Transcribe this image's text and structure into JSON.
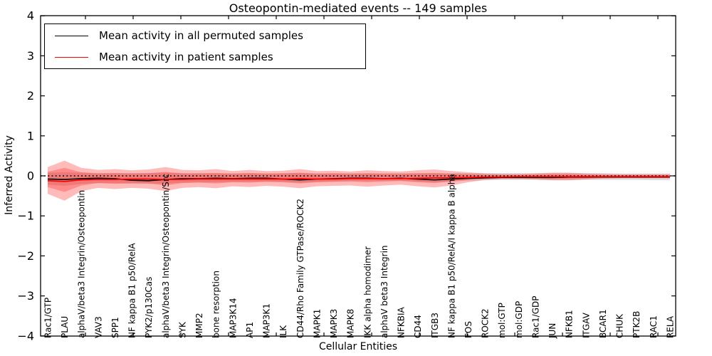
{
  "title": "Osteopontin-mediated events -- 149 samples",
  "axes": {
    "ylabel": "Inferred Activity",
    "xlabel": "Cellular Entities",
    "ytick_labels": [
      "4",
      "3",
      "2",
      "1",
      "0",
      "−1",
      "−2",
      "−3",
      "−4"
    ]
  },
  "legend": {
    "items": [
      {
        "label": "Mean activity in all permuted samples",
        "color": "#000000"
      },
      {
        "label": "Mean activity in patient samples",
        "color": "#ff0000"
      }
    ]
  },
  "chart_data": {
    "type": "line",
    "title": "Osteopontin-mediated events -- 149 samples",
    "xlabel": "Cellular Entities",
    "ylabel": "Inferred Activity",
    "ylim": [
      -4,
      4
    ],
    "grid": false,
    "legend_position": "upper left",
    "zero_line": {
      "style": "dotted",
      "color": "#000000",
      "y": 0
    },
    "categories": [
      "Rac1/GTP",
      "PLAU",
      "alphaV/beta3 Integrin/Osteopontin",
      "VAV3",
      "SPP1",
      "NF kappa B1 p50/RelA",
      "PYK2/p130Cas",
      "alphaV/beta3 Integrin/Osteopontin/Src",
      "SYK",
      "MMP2",
      "bone resorption",
      "MAP3K14",
      "AP1",
      "MAP3K1",
      "ILK",
      "CD44/Rho Family GTPase/ROCK2",
      "MAPK1",
      "MAPK3",
      "MAPK8",
      "IKK alpha homodimer",
      "alphaV beta3 Integrin",
      "NFKBIA",
      "CD44",
      "ITGB3",
      "NF kappa B1 p50/RelA/I kappa B alpha",
      "FOS",
      "ROCK2",
      "mol:GTP",
      "mol:GDP",
      "Rac1/GDP",
      "JUN",
      "NFKB1",
      "ITGAV",
      "BCAR1",
      "CHUK",
      "PTK2B",
      "RAC1",
      "RELA"
    ],
    "ytick_values": [
      4,
      3,
      2,
      1,
      0,
      -1,
      -2,
      -3,
      -4
    ],
    "series": [
      {
        "name": "Mean activity in all permuted samples",
        "color": "#000000",
        "values": [
          -0.08,
          -0.09,
          -0.07,
          -0.06,
          -0.07,
          -0.11,
          -0.12,
          -0.09,
          -0.07,
          -0.07,
          -0.06,
          -0.07,
          -0.06,
          -0.06,
          -0.08,
          -0.1,
          -0.08,
          -0.07,
          -0.06,
          -0.06,
          -0.07,
          -0.06,
          -0.08,
          -0.1,
          -0.08,
          -0.06,
          -0.05,
          -0.04,
          -0.04,
          -0.04,
          -0.04,
          -0.03,
          -0.03,
          -0.03,
          -0.03,
          -0.03,
          -0.03,
          -0.03
        ]
      },
      {
        "name": "Mean activity in patient samples",
        "color": "#ff0000",
        "values": [
          -0.12,
          -0.14,
          -0.1,
          -0.09,
          -0.09,
          -0.08,
          -0.08,
          -0.09,
          -0.09,
          -0.08,
          -0.08,
          -0.08,
          -0.08,
          -0.08,
          -0.08,
          -0.07,
          -0.08,
          -0.08,
          -0.07,
          -0.07,
          -0.07,
          -0.07,
          -0.06,
          -0.05,
          -0.05,
          -0.04,
          -0.03,
          -0.03,
          -0.02,
          -0.02,
          -0.02,
          -0.02,
          -0.02,
          -0.02,
          -0.02,
          -0.02,
          -0.02,
          -0.02
        ]
      }
    ],
    "bands": [
      {
        "name": "permuted-range",
        "color": "rgba(0,0,0,0.13)",
        "high": [
          0.08,
          0.09,
          0.08,
          0.07,
          0.07,
          0.07,
          0.07,
          0.08,
          0.07,
          0.07,
          0.07,
          0.07,
          0.07,
          0.07,
          0.07,
          0.07,
          0.07,
          0.07,
          0.07,
          0.07,
          0.07,
          0.07,
          0.07,
          0.07,
          0.07,
          0.07,
          0.07,
          0.07,
          0.07,
          0.07,
          0.07,
          0.07,
          0.07,
          0.07,
          0.06,
          0.06,
          0.06,
          0.06
        ],
        "low": [
          -0.22,
          -0.25,
          -0.2,
          -0.18,
          -0.18,
          -0.2,
          -0.2,
          -0.19,
          -0.17,
          -0.16,
          -0.16,
          -0.15,
          -0.15,
          -0.14,
          -0.15,
          -0.17,
          -0.15,
          -0.14,
          -0.13,
          -0.13,
          -0.13,
          -0.12,
          -0.14,
          -0.16,
          -0.14,
          -0.12,
          -0.11,
          -0.1,
          -0.1,
          -0.1,
          -0.11,
          -0.11,
          -0.1,
          -0.1,
          -0.1,
          -0.1,
          -0.11,
          -0.11
        ]
      },
      {
        "name": "patient-range-outer",
        "color": "rgba(255,0,0,0.27)",
        "high": [
          0.22,
          0.38,
          0.2,
          0.15,
          0.17,
          0.14,
          0.16,
          0.22,
          0.15,
          0.14,
          0.17,
          0.12,
          0.15,
          0.12,
          0.13,
          0.17,
          0.12,
          0.13,
          0.11,
          0.14,
          0.12,
          0.11,
          0.14,
          0.16,
          0.12,
          0.09,
          0.06,
          0.05,
          0.05,
          0.06,
          0.08,
          0.08,
          0.06,
          0.05,
          0.04,
          0.04,
          0.04,
          0.04
        ],
        "low": [
          -0.45,
          -0.62,
          -0.38,
          -0.3,
          -0.33,
          -0.3,
          -0.32,
          -0.38,
          -0.3,
          -0.28,
          -0.31,
          -0.26,
          -0.28,
          -0.25,
          -0.27,
          -0.31,
          -0.26,
          -0.25,
          -0.24,
          -0.27,
          -0.24,
          -0.22,
          -0.26,
          -0.29,
          -0.24,
          -0.16,
          -0.1,
          -0.08,
          -0.08,
          -0.09,
          -0.11,
          -0.11,
          -0.09,
          -0.07,
          -0.06,
          -0.06,
          -0.06,
          -0.06
        ]
      },
      {
        "name": "patient-range-inner",
        "color": "rgba(255,0,0,0.25)",
        "high": [
          0.1,
          0.2,
          0.09,
          0.06,
          0.07,
          0.06,
          0.07,
          0.1,
          0.06,
          0.06,
          0.07,
          0.05,
          0.07,
          0.05,
          0.06,
          0.08,
          0.05,
          0.06,
          0.05,
          0.06,
          0.05,
          0.05,
          0.06,
          0.07,
          0.05,
          0.04,
          0.03,
          0.02,
          0.02,
          0.03,
          0.04,
          0.04,
          0.03,
          0.02,
          0.02,
          0.02,
          0.02,
          0.02
        ],
        "low": [
          -0.28,
          -0.4,
          -0.24,
          -0.18,
          -0.2,
          -0.18,
          -0.19,
          -0.24,
          -0.18,
          -0.17,
          -0.19,
          -0.16,
          -0.17,
          -0.15,
          -0.16,
          -0.19,
          -0.16,
          -0.15,
          -0.14,
          -0.16,
          -0.14,
          -0.13,
          -0.16,
          -0.18,
          -0.14,
          -0.1,
          -0.06,
          -0.05,
          -0.05,
          -0.06,
          -0.07,
          -0.07,
          -0.06,
          -0.04,
          -0.04,
          -0.04,
          -0.04,
          -0.04
        ]
      }
    ]
  }
}
